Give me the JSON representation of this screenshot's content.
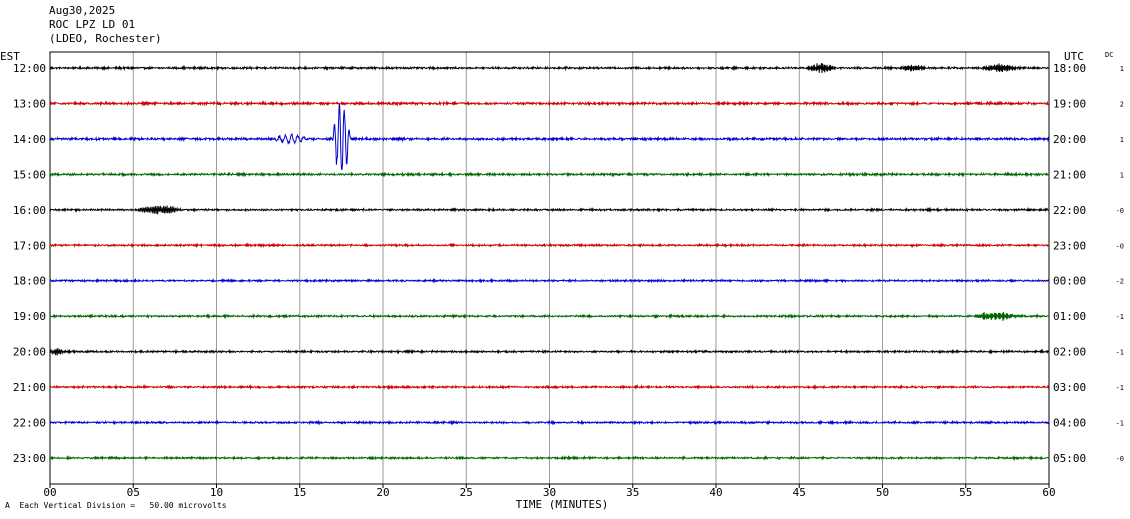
{
  "header": {
    "date": "Aug30,2025",
    "station": "ROC LPZ LD 01",
    "network": "(LDEO, Rochester)"
  },
  "left_axis_title": "EST",
  "right_axis_title": "UTC",
  "dc_title": "DC",
  "xlabel": "TIME (MINUTES)",
  "scale_note": "Each Vertical Division =   50.00 microvolts",
  "footer_glyph": "A",
  "chart_data": {
    "type": "line",
    "title": "",
    "x_ticks": [
      "00",
      "05",
      "10",
      "15",
      "20",
      "25",
      "30",
      "35",
      "40",
      "45",
      "50",
      "55",
      "60"
    ],
    "xlim": [
      0,
      60
    ],
    "grid": true,
    "trace_colors": [
      "#000000",
      "#cc0000",
      "#0000cc",
      "#006600"
    ],
    "rows": [
      {
        "est": "12:00",
        "utc": "18:00",
        "dc": "1",
        "color": "#000000",
        "amp": 1.5,
        "events": [
          {
            "start": 45.5,
            "end": 48.5,
            "amp": 6,
            "period": 0.33
          },
          {
            "start": 51,
            "end": 54,
            "amp": 4,
            "period": 0.33
          },
          {
            "start": 56,
            "end": 60,
            "amp": 5,
            "period": 0.33
          }
        ]
      },
      {
        "est": "13:00",
        "utc": "19:00",
        "dc": "2",
        "color": "#cc0000",
        "amp": 1.8,
        "events": []
      },
      {
        "est": "14:00",
        "utc": "20:00",
        "dc": "1",
        "color": "#0000cc",
        "amp": 1.8,
        "events": [
          {
            "start": 13.5,
            "end": 17,
            "amp": 5,
            "period": 0.22
          },
          {
            "start": 17,
            "end": 18.8,
            "amp": 45,
            "period": 0.18
          },
          {
            "start": 18.8,
            "end": 21,
            "amp": 12,
            "period": 0.2
          },
          {
            "start": 21,
            "end": 26.5,
            "amp": 6,
            "period": 0.2
          }
        ]
      },
      {
        "est": "15:00",
        "utc": "21:00",
        "dc": "1",
        "color": "#006600",
        "amp": 1.6,
        "events": [
          {
            "start": 17.3,
            "end": 18.5,
            "amp": 8,
            "period": 0.2
          }
        ]
      },
      {
        "est": "16:00",
        "utc": "22:00",
        "dc": "-0",
        "color": "#000000",
        "amp": 1.4,
        "events": [
          {
            "start": 5.2,
            "end": 10,
            "amp": 5,
            "period": 0.6
          },
          {
            "start": 12.5,
            "end": 15.5,
            "amp": 3,
            "period": 0.4
          }
        ]
      },
      {
        "est": "17:00",
        "utc": "23:00",
        "dc": "-0",
        "color": "#cc0000",
        "amp": 1.4,
        "events": []
      },
      {
        "est": "18:00",
        "utc": "00:00",
        "dc": "-2",
        "color": "#0000cc",
        "amp": 1.4,
        "events": []
      },
      {
        "est": "19:00",
        "utc": "01:00",
        "dc": "-1",
        "color": "#006600",
        "amp": 1.4,
        "events": [
          {
            "start": 55.5,
            "end": 60,
            "amp": 5,
            "period": 0.35
          }
        ]
      },
      {
        "est": "20:00",
        "utc": "02:00",
        "dc": "-1",
        "color": "#000000",
        "amp": 1.4,
        "events": [
          {
            "start": 0,
            "end": 1.5,
            "amp": 4,
            "period": 0.3
          },
          {
            "start": 5.5,
            "end": 9,
            "amp": 3,
            "period": 0.4
          }
        ]
      },
      {
        "est": "21:00",
        "utc": "03:00",
        "dc": "-1",
        "color": "#cc0000",
        "amp": 1.4,
        "events": []
      },
      {
        "est": "22:00",
        "utc": "04:00",
        "dc": "-1",
        "color": "#0000cc",
        "amp": 1.4,
        "events": []
      },
      {
        "est": "23:00",
        "utc": "05:00",
        "dc": "-0",
        "color": "#006600",
        "amp": 1.4,
        "events": [
          {
            "start": 31,
            "end": 34.5,
            "amp": 4,
            "period": 0.4
          }
        ]
      }
    ]
  }
}
